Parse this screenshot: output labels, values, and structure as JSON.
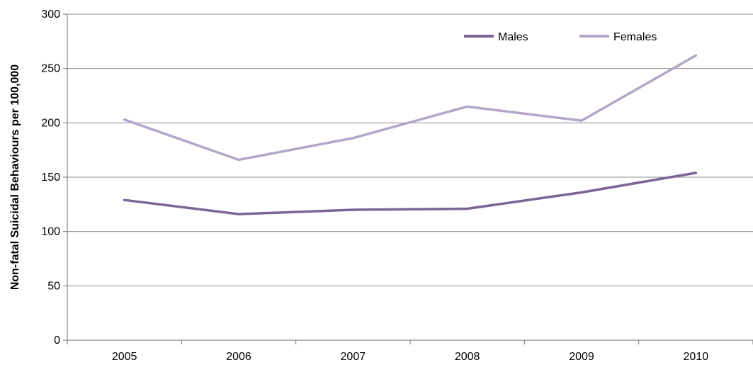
{
  "chart_data": {
    "type": "line",
    "title": "",
    "xlabel": "",
    "ylabel": "Non-fatal Suicidal Behaviours per 100,000",
    "categories": [
      "2005",
      "2006",
      "2007",
      "2008",
      "2009",
      "2010"
    ],
    "ylim": [
      0,
      300
    ],
    "yticks": [
      0,
      50,
      100,
      150,
      200,
      250,
      300
    ],
    "grid": true,
    "legend_position": "top-right",
    "series": [
      {
        "name": "Males",
        "color": "#7a6596",
        "values": [
          129,
          116,
          120,
          121,
          136,
          154
        ]
      },
      {
        "name": "Females",
        "color": "#b3a6c8",
        "values": [
          203,
          166,
          186,
          215,
          202,
          262
        ]
      }
    ]
  }
}
